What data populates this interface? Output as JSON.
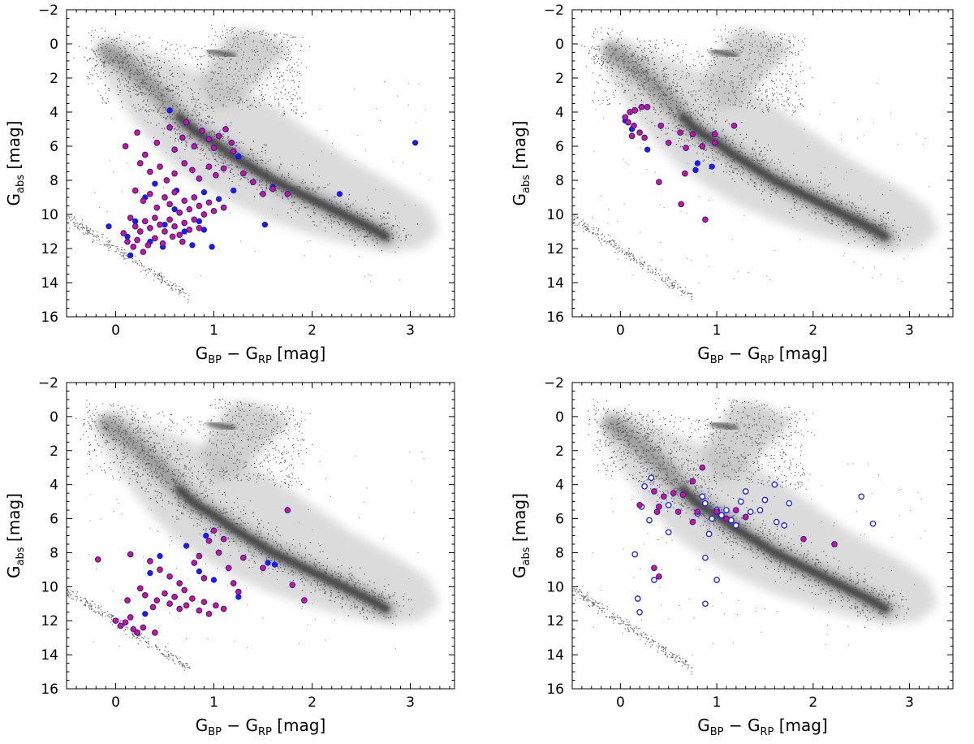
{
  "chart_data": [
    {
      "type": "scatter",
      "panel": "top-left",
      "xlabel": {
        "main": "G",
        "sub1": "BP",
        "mid": " − G",
        "sub2": "RP",
        "unit": " [mag]"
      },
      "ylabel": {
        "main": "G",
        "sub": "abs",
        "unit": " [mag]"
      },
      "xlim": [
        -0.5,
        3.45
      ],
      "ylim": [
        16,
        -2
      ],
      "xticks": [
        "0",
        "1",
        "2",
        "3"
      ],
      "yticks": [
        "−2",
        "0",
        "2",
        "4",
        "6",
        "8",
        "10",
        "12",
        "14",
        "16"
      ],
      "series": [
        {
          "name": "blue",
          "style": "filled-blue",
          "points": [
            [
              0.55,
              3.9
            ],
            [
              1.25,
              6.6
            ],
            [
              3.05,
              5.8
            ],
            [
              2.28,
              8.8
            ],
            [
              -0.07,
              10.7
            ],
            [
              0.12,
              11.3
            ],
            [
              0.15,
              12.4
            ],
            [
              0.48,
              11.9
            ],
            [
              0.78,
              11.8
            ],
            [
              0.98,
              11.9
            ],
            [
              1.52,
              10.6
            ],
            [
              1.6,
              8.4
            ],
            [
              0.3,
              9.0
            ],
            [
              0.4,
              8.2
            ],
            [
              0.62,
              8.6
            ],
            [
              0.85,
              10.4
            ],
            [
              0.9,
              8.7
            ],
            [
              0.2,
              10.4
            ],
            [
              0.5,
              10.6
            ],
            [
              0.7,
              11.0
            ],
            [
              1.05,
              9.1
            ],
            [
              0.35,
              11.6
            ],
            [
              0.6,
              9.7
            ],
            [
              0.9,
              10.9
            ],
            [
              1.2,
              8.6
            ]
          ]
        },
        {
          "name": "magenta",
          "style": "magenta-blue-edge",
          "points": [
            [
              0.1,
              6.0
            ],
            [
              0.22,
              5.2
            ],
            [
              0.3,
              6.5
            ],
            [
              0.42,
              5.8
            ],
            [
              0.55,
              4.9
            ],
            [
              0.6,
              6.2
            ],
            [
              0.68,
              5.5
            ],
            [
              0.72,
              4.6
            ],
            [
              0.8,
              6.0
            ],
            [
              0.88,
              5.1
            ],
            [
              0.95,
              5.6
            ],
            [
              1.0,
              6.1
            ],
            [
              1.05,
              5.4
            ],
            [
              1.12,
              5.0
            ],
            [
              1.18,
              5.8
            ],
            [
              1.2,
              6.3
            ],
            [
              0.25,
              7.0
            ],
            [
              0.35,
              7.5
            ],
            [
              0.45,
              7.2
            ],
            [
              0.52,
              8.0
            ],
            [
              0.6,
              7.6
            ],
            [
              0.7,
              7.0
            ],
            [
              0.78,
              7.4
            ],
            [
              0.85,
              7.9
            ],
            [
              0.95,
              7.2
            ],
            [
              1.02,
              7.7
            ],
            [
              1.1,
              7.3
            ],
            [
              1.3,
              7.6
            ],
            [
              1.4,
              8.1
            ],
            [
              1.5,
              8.8
            ],
            [
              1.6,
              8.5
            ],
            [
              1.75,
              8.8
            ],
            [
              0.2,
              8.6
            ],
            [
              0.28,
              9.2
            ],
            [
              0.35,
              8.8
            ],
            [
              0.42,
              9.6
            ],
            [
              0.5,
              9.0
            ],
            [
              0.55,
              9.4
            ],
            [
              0.6,
              8.7
            ],
            [
              0.65,
              9.9
            ],
            [
              0.7,
              9.2
            ],
            [
              0.75,
              9.7
            ],
            [
              0.8,
              9.0
            ],
            [
              0.85,
              9.5
            ],
            [
              0.9,
              10.0
            ],
            [
              0.95,
              9.3
            ],
            [
              1.0,
              9.8
            ],
            [
              1.1,
              9.6
            ],
            [
              0.15,
              10.2
            ],
            [
              0.2,
              10.7
            ],
            [
              0.25,
              11.0
            ],
            [
              0.3,
              10.4
            ],
            [
              0.35,
              10.8
            ],
            [
              0.4,
              10.2
            ],
            [
              0.45,
              10.6
            ],
            [
              0.5,
              11.0
            ],
            [
              0.55,
              10.3
            ],
            [
              0.6,
              10.7
            ],
            [
              0.65,
              11.2
            ],
            [
              0.7,
              10.5
            ],
            [
              0.75,
              10.9
            ],
            [
              0.8,
              10.3
            ],
            [
              0.85,
              10.8
            ],
            [
              0.08,
              11.1
            ],
            [
              0.12,
              11.6
            ],
            [
              0.18,
              11.9
            ],
            [
              0.22,
              11.5
            ],
            [
              0.28,
              12.2
            ],
            [
              0.33,
              11.8
            ],
            [
              0.4,
              11.4
            ],
            [
              0.48,
              11.7
            ],
            [
              0.58,
              11.3
            ],
            [
              0.68,
              11.6
            ]
          ]
        }
      ]
    },
    {
      "type": "scatter",
      "panel": "top-right",
      "xlabel": {
        "main": "G",
        "sub1": "BP",
        "mid": " − G",
        "sub2": "RP",
        "unit": " [mag]"
      },
      "ylabel": {
        "main": "G",
        "sub": "abs",
        "unit": " [mag]"
      },
      "xlim": [
        -0.5,
        3.45
      ],
      "ylim": [
        16,
        -2
      ],
      "xticks": [
        "0",
        "1",
        "2",
        "3"
      ],
      "yticks": [
        "−2",
        "0",
        "2",
        "4",
        "6",
        "8",
        "10",
        "12",
        "14",
        "16"
      ],
      "series": [
        {
          "name": "blue",
          "style": "filled-blue",
          "points": [
            [
              0.05,
              4.5
            ],
            [
              0.12,
              5.0
            ],
            [
              0.28,
              6.2
            ],
            [
              0.8,
              7.0
            ],
            [
              0.78,
              7.4
            ],
            [
              0.95,
              7.2
            ]
          ]
        },
        {
          "name": "magenta",
          "style": "magenta-blue-edge",
          "points": [
            [
              0.05,
              4.3
            ],
            [
              0.1,
              4.0
            ],
            [
              0.15,
              3.9
            ],
            [
              0.22,
              3.7
            ],
            [
              0.28,
              3.7
            ],
            [
              0.08,
              4.6
            ],
            [
              0.14,
              4.8
            ],
            [
              0.2,
              5.2
            ],
            [
              0.25,
              5.5
            ],
            [
              0.12,
              5.4
            ],
            [
              0.42,
              4.8
            ],
            [
              0.5,
              5.8
            ],
            [
              0.62,
              5.2
            ],
            [
              0.68,
              6.1
            ],
            [
              0.75,
              5.3
            ],
            [
              0.85,
              6.0
            ],
            [
              0.98,
              5.3
            ],
            [
              0.98,
              5.8
            ],
            [
              1.18,
              4.8
            ],
            [
              0.67,
              7.6
            ],
            [
              0.4,
              8.1
            ],
            [
              0.63,
              9.4
            ],
            [
              0.88,
              10.3
            ]
          ]
        }
      ]
    },
    {
      "type": "scatter",
      "panel": "bottom-left",
      "xlabel": {
        "main": "G",
        "sub1": "BP",
        "mid": " − G",
        "sub2": "RP",
        "unit": " [mag]"
      },
      "ylabel": {
        "main": "G",
        "sub": "abs",
        "unit": " [mag]"
      },
      "xlim": [
        -0.5,
        3.45
      ],
      "ylim": [
        16,
        -2
      ],
      "xticks": [
        "0",
        "1",
        "2",
        "3"
      ],
      "yticks": [
        "−2",
        "0",
        "2",
        "4",
        "6",
        "8",
        "10",
        "12",
        "14",
        "16"
      ],
      "series": [
        {
          "name": "blue",
          "style": "filled-blue",
          "points": [
            [
              0.72,
              7.6
            ],
            [
              0.92,
              7.0
            ],
            [
              1.25,
              10.6
            ],
            [
              1.55,
              8.6
            ],
            [
              1.62,
              8.7
            ],
            [
              0.35,
              9.2
            ],
            [
              0.45,
              8.2
            ],
            [
              0.3,
              11.6
            ],
            [
              0.85,
              9.1
            ],
            [
              1.0,
              9.6
            ]
          ]
        },
        {
          "name": "magenta",
          "style": "magenta-blue-edge",
          "points": [
            [
              -0.18,
              8.4
            ],
            [
              0.15,
              8.1
            ],
            [
              0.35,
              8.5
            ],
            [
              0.45,
              9.0
            ],
            [
              0.55,
              9.4
            ],
            [
              0.65,
              9.8
            ],
            [
              0.7,
              10.2
            ],
            [
              0.8,
              8.6
            ],
            [
              0.85,
              8.2
            ],
            [
              0.9,
              9.5
            ],
            [
              0.95,
              7.3
            ],
            [
              1.0,
              6.7
            ],
            [
              1.05,
              8.0
            ],
            [
              1.1,
              7.2
            ],
            [
              1.15,
              8.9
            ],
            [
              1.2,
              9.8
            ],
            [
              1.25,
              10.3
            ],
            [
              1.3,
              8.3
            ],
            [
              0.25,
              10.1
            ],
            [
              0.3,
              10.5
            ],
            [
              0.38,
              11.2
            ],
            [
              0.42,
              10.8
            ],
            [
              0.5,
              10.4
            ],
            [
              0.55,
              11.0
            ],
            [
              0.6,
              10.6
            ],
            [
              0.65,
              11.3
            ],
            [
              0.72,
              11.1
            ],
            [
              0.78,
              10.7
            ],
            [
              0.85,
              11.4
            ],
            [
              0.9,
              10.9
            ],
            [
              0.95,
              11.6
            ],
            [
              1.02,
              11.1
            ],
            [
              1.1,
              11.3
            ],
            [
              0.15,
              11.8
            ],
            [
              0.12,
              10.8
            ],
            [
              0.1,
              12.1
            ],
            [
              0.05,
              12.3
            ],
            [
              0.0,
              12.0
            ],
            [
              0.18,
              12.5
            ],
            [
              0.22,
              12.7
            ],
            [
              0.28,
              12.4
            ],
            [
              0.4,
              12.7
            ],
            [
              1.75,
              5.5
            ],
            [
              1.8,
              9.9
            ],
            [
              1.92,
              10.8
            ],
            [
              1.5,
              8.9
            ]
          ]
        }
      ]
    },
    {
      "type": "scatter",
      "panel": "bottom-right",
      "xlabel": {
        "main": "G",
        "sub1": "BP",
        "mid": " − G",
        "sub2": "RP",
        "unit": " [mag]"
      },
      "ylabel": {
        "main": "G",
        "sub": "abs",
        "unit": " [mag]"
      },
      "xlim": [
        -0.5,
        3.45
      ],
      "ylim": [
        16,
        -2
      ],
      "xticks": [
        "0",
        "1",
        "2",
        "3"
      ],
      "yticks": [
        "−2",
        "0",
        "2",
        "4",
        "6",
        "8",
        "10",
        "12",
        "14",
        "16"
      ],
      "series": [
        {
          "name": "blue-open",
          "style": "open-blue",
          "points": [
            [
              0.25,
              4.1
            ],
            [
              0.32,
              3.6
            ],
            [
              0.22,
              5.3
            ],
            [
              0.3,
              6.1
            ],
            [
              0.5,
              5.2
            ],
            [
              0.5,
              6.8
            ],
            [
              0.15,
              8.1
            ],
            [
              0.35,
              9.6
            ],
            [
              0.2,
              11.5
            ],
            [
              0.8,
              5.7
            ],
            [
              0.85,
              4.7
            ],
            [
              0.88,
              5.1
            ],
            [
              0.95,
              6.0
            ],
            [
              1.0,
              5.5
            ],
            [
              1.05,
              5.8
            ],
            [
              1.1,
              5.5
            ],
            [
              1.15,
              6.1
            ],
            [
              1.2,
              6.4
            ],
            [
              1.25,
              5.0
            ],
            [
              1.3,
              4.4
            ],
            [
              1.35,
              5.6
            ],
            [
              1.45,
              5.5
            ],
            [
              1.5,
              4.9
            ],
            [
              1.6,
              4.0
            ],
            [
              1.62,
              6.2
            ],
            [
              1.7,
              6.4
            ],
            [
              1.75,
              5.1
            ],
            [
              2.5,
              4.7
            ],
            [
              2.62,
              6.3
            ],
            [
              0.88,
              8.3
            ],
            [
              0.92,
              6.9
            ],
            [
              1.0,
              9.6
            ],
            [
              0.88,
              11.0
            ],
            [
              0.18,
              10.7
            ]
          ]
        },
        {
          "name": "magenta",
          "style": "magenta-blue-edge",
          "points": [
            [
              0.75,
              3.8
            ],
            [
              0.8,
              5.6
            ],
            [
              0.85,
              3.0
            ],
            [
              0.6,
              5.6
            ],
            [
              0.55,
              4.5
            ],
            [
              0.45,
              4.7
            ],
            [
              0.4,
              5.3
            ],
            [
              0.35,
              4.4
            ],
            [
              0.38,
              5.6
            ],
            [
              0.2,
              5.2
            ],
            [
              0.35,
              8.9
            ],
            [
              0.4,
              9.4
            ],
            [
              0.65,
              4.6
            ],
            [
              0.75,
              6.2
            ],
            [
              1.0,
              5.6
            ],
            [
              1.1,
              6.0
            ],
            [
              1.2,
              5.5
            ],
            [
              1.3,
              5.9
            ],
            [
              1.9,
              7.2
            ],
            [
              2.22,
              7.5
            ]
          ]
        }
      ]
    }
  ]
}
